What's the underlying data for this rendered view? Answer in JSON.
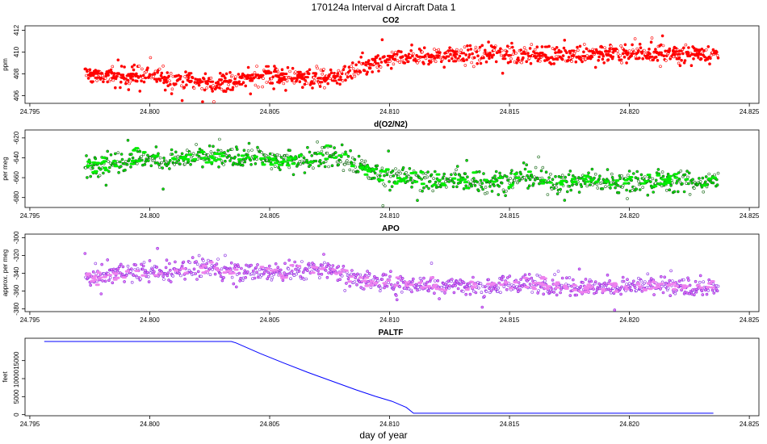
{
  "title": "170124a   Interval d Aircraft Data 1",
  "xlabel": "day of year",
  "chart_data": [
    {
      "type": "scatter",
      "title": "CO2",
      "ylabel": "ppm",
      "color": "#ff0000",
      "xlim": [
        24.7948,
        24.8254
      ],
      "ylim": [
        405.3,
        412.4
      ],
      "xticks": [
        24.795,
        24.8,
        24.805,
        24.81,
        24.815,
        24.82,
        24.825
      ],
      "xtick_labels": [
        "24.795",
        "24.800",
        "24.805",
        "24.810",
        "24.815",
        "24.820",
        "24.825"
      ],
      "yticks": [
        406,
        408,
        410,
        412
      ],
      "ytick_labels": [
        "406",
        "408",
        "410",
        "412"
      ],
      "grid": false,
      "series": [
        {
          "points": [
            [
              24.7975,
              408.0
            ],
            [
              24.7985,
              407.6
            ],
            [
              24.7995,
              407.9
            ],
            [
              24.8005,
              407.7
            ],
            [
              24.8015,
              407.4
            ],
            [
              24.8025,
              407.1
            ],
            [
              24.8035,
              407.3
            ],
            [
              24.8045,
              407.9
            ],
            [
              24.8055,
              407.8
            ],
            [
              24.8065,
              407.7
            ],
            [
              24.8075,
              407.6
            ],
            [
              24.8085,
              408.2
            ],
            [
              24.8095,
              409.0
            ],
            [
              24.8105,
              409.5
            ],
            [
              24.8115,
              409.6
            ],
            [
              24.8125,
              409.7
            ],
            [
              24.8135,
              409.7
            ],
            [
              24.8145,
              409.9
            ],
            [
              24.8155,
              409.8
            ],
            [
              24.8165,
              409.7
            ],
            [
              24.8175,
              409.8
            ],
            [
              24.8185,
              409.8
            ],
            [
              24.8195,
              409.9
            ],
            [
              24.8205,
              409.9
            ],
            [
              24.8215,
              409.8
            ],
            [
              24.8225,
              409.9
            ],
            [
              24.8235,
              409.8
            ]
          ],
          "x_range": [
            24.7973,
            24.8237
          ],
          "spread": 0.8
        }
      ]
    },
    {
      "type": "scatter",
      "title": "d(O2/N2)",
      "ylabel": "per meg",
      "color": "#00ee00",
      "edge_color": "#1a6b1a",
      "xlim": [
        24.7948,
        24.8254
      ],
      "ylim": [
        -690,
        -612
      ],
      "xticks": [
        24.795,
        24.8,
        24.805,
        24.81,
        24.815,
        24.82,
        24.825
      ],
      "xtick_labels": [
        "24.795",
        "24.800",
        "24.805",
        "24.810",
        "24.815",
        "24.820",
        "24.825"
      ],
      "yticks": [
        -680,
        -660,
        -640,
        -620
      ],
      "ytick_labels": [
        "-680",
        "-660",
        "-640",
        "-620"
      ],
      "grid": false,
      "series": [
        {
          "points": [
            [
              24.7975,
              -647
            ],
            [
              24.7985,
              -644
            ],
            [
              24.7995,
              -639
            ],
            [
              24.8005,
              -643
            ],
            [
              24.8015,
              -641
            ],
            [
              24.8025,
              -639
            ],
            [
              24.8035,
              -640
            ],
            [
              24.8045,
              -639
            ],
            [
              24.8055,
              -643
            ],
            [
              24.8065,
              -641
            ],
            [
              24.8075,
              -637
            ],
            [
              24.8085,
              -645
            ],
            [
              24.8095,
              -657
            ],
            [
              24.8105,
              -659
            ],
            [
              24.8115,
              -663
            ],
            [
              24.8125,
              -663
            ],
            [
              24.8135,
              -663
            ],
            [
              24.8145,
              -665
            ],
            [
              24.8155,
              -660
            ],
            [
              24.8165,
              -662
            ],
            [
              24.8175,
              -665
            ],
            [
              24.8185,
              -663
            ],
            [
              24.8195,
              -663
            ],
            [
              24.8205,
              -664
            ],
            [
              24.8215,
              -664
            ],
            [
              24.8225,
              -664
            ],
            [
              24.8235,
              -664
            ]
          ],
          "x_range": [
            24.7973,
            24.8237
          ],
          "spread": 10
        }
      ]
    },
    {
      "type": "scatter",
      "title": "APO",
      "ylabel": "approx. per meg",
      "color": "#ee82ee",
      "edge_color": "#8a2be2",
      "xlim": [
        24.7948,
        24.8254
      ],
      "ylim": [
        -383,
        -296
      ],
      "xticks": [
        24.795,
        24.8,
        24.805,
        24.81,
        24.815,
        24.82,
        24.825
      ],
      "xtick_labels": [
        "24.795",
        "24.800",
        "24.805",
        "24.810",
        "24.815",
        "24.820",
        "24.825"
      ],
      "yticks": [
        -380,
        -360,
        -340,
        -320,
        -300
      ],
      "ytick_labels": [
        "-380",
        "-360",
        "-340",
        "-320",
        "-300"
      ],
      "grid": false,
      "series": [
        {
          "points": [
            [
              24.7975,
              -345
            ],
            [
              24.7985,
              -340
            ],
            [
              24.7995,
              -337
            ],
            [
              24.8005,
              -338
            ],
            [
              24.8015,
              -336
            ],
            [
              24.8025,
              -334
            ],
            [
              24.8035,
              -338
            ],
            [
              24.8045,
              -338
            ],
            [
              24.8055,
              -339
            ],
            [
              24.8065,
              -336
            ],
            [
              24.8075,
              -335
            ],
            [
              24.8085,
              -345
            ],
            [
              24.8095,
              -350
            ],
            [
              24.8105,
              -351
            ],
            [
              24.8115,
              -353
            ],
            [
              24.8125,
              -353
            ],
            [
              24.8135,
              -355
            ],
            [
              24.8145,
              -353
            ],
            [
              24.8155,
              -352
            ],
            [
              24.8165,
              -352
            ],
            [
              24.8175,
              -353
            ],
            [
              24.8185,
              -355
            ],
            [
              24.8195,
              -355
            ],
            [
              24.8205,
              -354
            ],
            [
              24.8215,
              -355
            ],
            [
              24.8225,
              -356
            ],
            [
              24.8235,
              -357
            ]
          ],
          "x_range": [
            24.7973,
            24.8237
          ],
          "spread": 10
        }
      ]
    },
    {
      "type": "line",
      "title": "PALTF",
      "ylabel": "feet",
      "color": "#0000ff",
      "xlim": [
        24.7948,
        24.8254
      ],
      "ylim": [
        -300,
        21200
      ],
      "xticks": [
        24.795,
        24.8,
        24.805,
        24.81,
        24.815,
        24.82,
        24.825
      ],
      "xtick_labels": [
        "24.795",
        "24.800",
        "24.805",
        "24.810",
        "24.815",
        "24.820",
        "24.825"
      ],
      "yticks": [
        0,
        5000,
        10000,
        15000
      ],
      "ytick_labels": [
        "0",
        "5000",
        "10000",
        "15000"
      ],
      "grid": false,
      "series": [
        {
          "x": [
            24.7956,
            24.8034,
            24.8036,
            24.8046,
            24.8056,
            24.8066,
            24.8076,
            24.8086,
            24.8094,
            24.8101,
            24.8107,
            24.811,
            24.8235
          ],
          "y": [
            20300,
            20300,
            19900,
            17000,
            14300,
            11700,
            9300,
            6900,
            5100,
            3700,
            2000,
            400,
            400
          ]
        }
      ]
    }
  ]
}
